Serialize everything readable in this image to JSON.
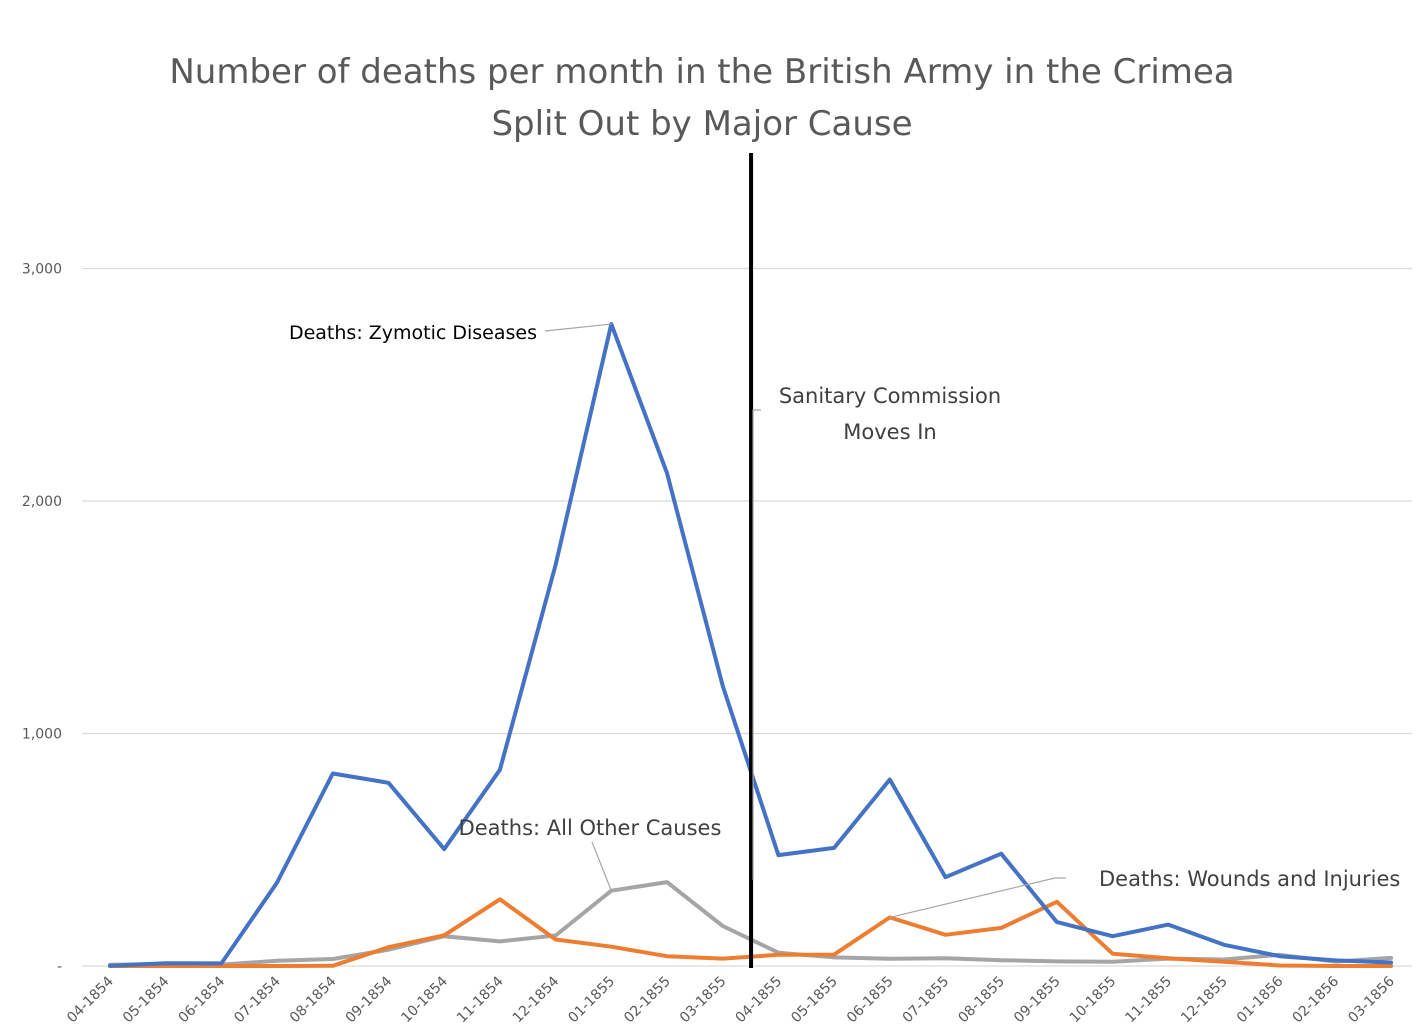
{
  "chart_data": {
    "type": "line",
    "title": "Number of deaths per month in the British Army in the Crimea",
    "subtitle": "Split Out by Major Cause",
    "xlabel": "",
    "ylabel": "",
    "ylim": [
      0,
      3000
    ],
    "grid": true,
    "y_ticks": [
      {
        "value": 0,
        "label": "-"
      },
      {
        "value": 1000,
        "label": "1,000"
      },
      {
        "value": 2000,
        "label": "2,000"
      },
      {
        "value": 3000,
        "label": "3,000"
      }
    ],
    "categories": [
      "04-1854",
      "05-1854",
      "06-1854",
      "07-1854",
      "08-1854",
      "09-1854",
      "10-1854",
      "11-1854",
      "12-1854",
      "01-1855",
      "02-1855",
      "03-1855",
      "04-1855",
      "05-1855",
      "06-1855",
      "07-1855",
      "08-1855",
      "09-1855",
      "10-1855",
      "11-1855",
      "12-1855",
      "01-1856",
      "02-1856",
      "03-1856"
    ],
    "series": [
      {
        "name": "Deaths: Zymotic Diseases",
        "color": "#4472c4",
        "values": [
          1,
          12,
          11,
          359,
          828,
          788,
          503,
          844,
          1725,
          2761,
          2120,
          1205,
          477,
          508,
          802,
          382,
          483,
          189,
          128,
          178,
          91,
          42,
          24,
          15
        ]
      },
      {
        "name": "Deaths: Wounds and Injuries",
        "color": "#ed7d31",
        "values": [
          0,
          0,
          0,
          0,
          1,
          81,
          132,
          287,
          114,
          83,
          42,
          32,
          48,
          49,
          209,
          134,
          164,
          276,
          53,
          33,
          18,
          2,
          0,
          0
        ]
      },
      {
        "name": "Deaths: All Other Causes",
        "color": "#a5a5a5",
        "values": [
          5,
          9,
          6,
          23,
          30,
          70,
          128,
          106,
          131,
          324,
          361,
          172,
          57,
          37,
          31,
          33,
          25,
          20,
          18,
          32,
          28,
          48,
          19,
          35
        ]
      }
    ],
    "annotations": {
      "zymotic_label": "Deaths: Zymotic Diseases",
      "other_label": "Deaths: All Other Causes",
      "wounds_label": "Deaths: Wounds and Injuries",
      "sanitary_line1": "Sanitary Commission",
      "sanitary_line2": "Moves In",
      "sanitary_marker_between": [
        "03-1855",
        "04-1855"
      ]
    }
  }
}
